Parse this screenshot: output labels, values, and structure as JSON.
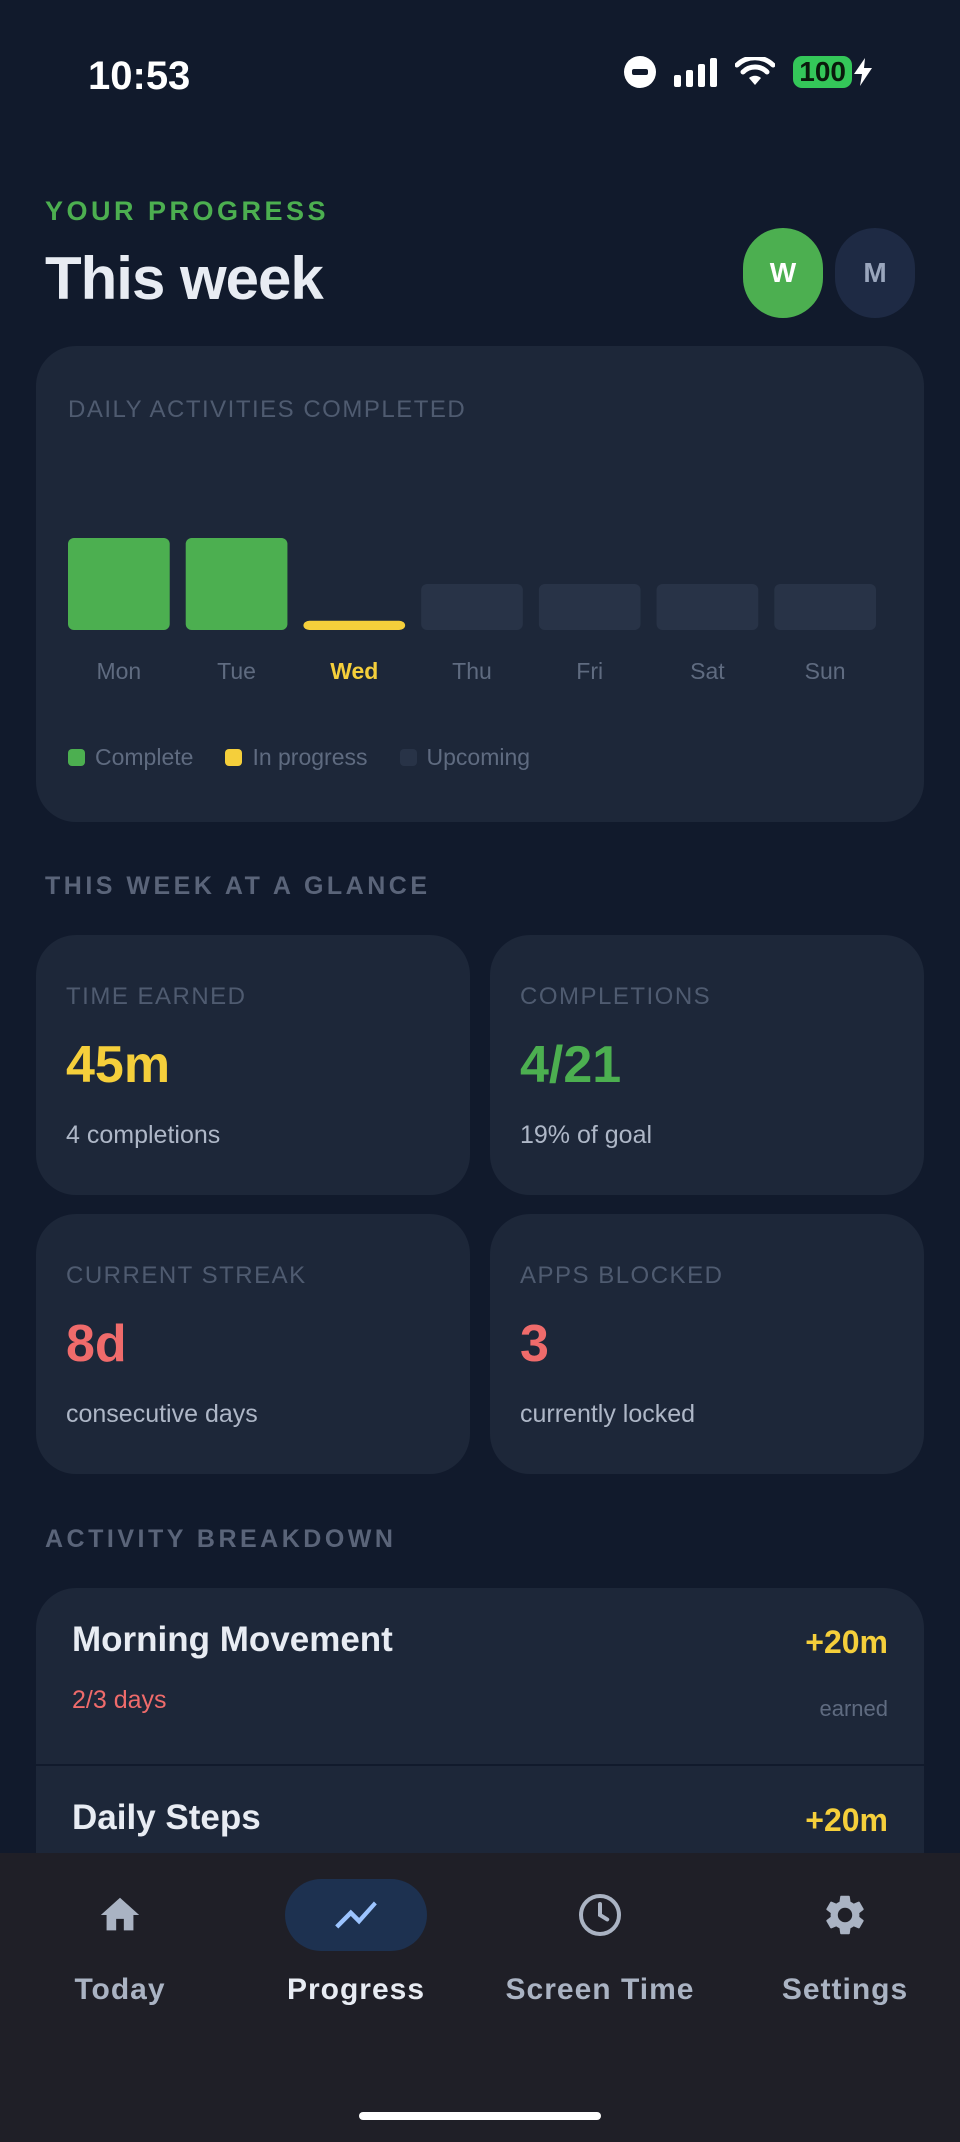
{
  "status_bar": {
    "time": "10:53",
    "battery": "100"
  },
  "header": {
    "eyebrow": "YOUR PROGRESS",
    "title": "This week",
    "toggle_week": "W",
    "toggle_month": "M"
  },
  "chart_card": {
    "title": "DAILY ACTIVITIES COMPLETED",
    "legend": {
      "complete": "Complete",
      "in_progress": "In progress",
      "upcoming": "Upcoming"
    }
  },
  "chart_data": {
    "type": "bar",
    "categories": [
      "Mon",
      "Tue",
      "Wed",
      "Thu",
      "Fri",
      "Sat",
      "Sun"
    ],
    "values": [
      1,
      1,
      0.1,
      0.5,
      0.5,
      0.5,
      0.5
    ],
    "status": [
      "complete",
      "complete",
      "in_progress",
      "upcoming",
      "upcoming",
      "upcoming",
      "upcoming"
    ],
    "highlight": "Wed",
    "ylim": [
      0,
      1
    ],
    "colors": {
      "complete": "#4caf50",
      "in_progress": "#f5cf3b",
      "upcoming": "#283347"
    }
  },
  "glance": {
    "section_label": "THIS WEEK AT A GLANCE",
    "time_earned": {
      "label": "TIME EARNED",
      "value": "45m",
      "sub": "4 completions",
      "color": "#f5cf3b"
    },
    "completions": {
      "label": "COMPLETIONS",
      "value": "4/21",
      "sub": "19% of goal",
      "color": "#4caf50"
    },
    "streak": {
      "label": "CURRENT STREAK",
      "value": "8d",
      "sub": "consecutive days",
      "color": "#ef6b6b"
    },
    "apps_blocked": {
      "label": "APPS BLOCKED",
      "value": "3",
      "sub": "currently locked",
      "color": "#ef6b6b"
    }
  },
  "breakdown": {
    "section_label": "ACTIVITY BREAKDOWN",
    "items": [
      {
        "name": "Morning Movement",
        "progress": "2/3 days",
        "time": "+20m",
        "earned": "earned"
      },
      {
        "name": "Daily Steps",
        "time": "+20m"
      }
    ]
  },
  "nav": {
    "items": [
      {
        "label": "Today",
        "icon": "home-icon"
      },
      {
        "label": "Progress",
        "icon": "trending-icon"
      },
      {
        "label": "Screen Time",
        "icon": "clock-icon"
      },
      {
        "label": "Settings",
        "icon": "gear-icon"
      }
    ],
    "active": "Progress"
  }
}
